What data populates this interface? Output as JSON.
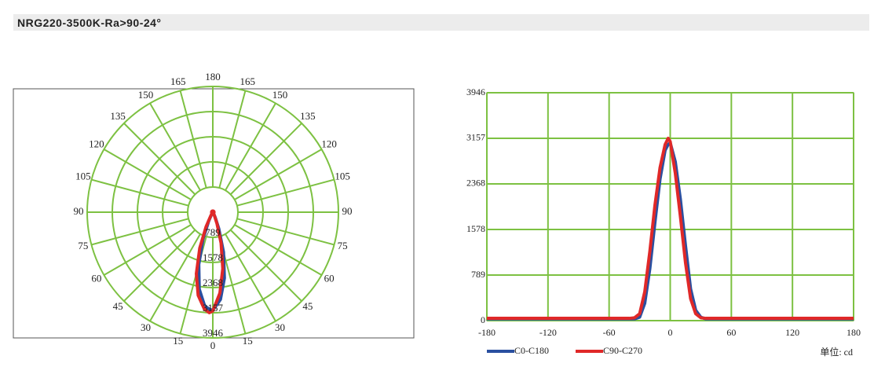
{
  "header": {
    "title": "NRG220-3500K-Ra>90-24°"
  },
  "chart_data": [
    {
      "type": "polar",
      "angle_labels": [
        0,
        15,
        30,
        45,
        60,
        75,
        90,
        105,
        120,
        135,
        150,
        165,
        180
      ],
      "rlim": [
        0,
        3946
      ],
      "rticks": [
        789,
        1578,
        2368,
        3157,
        3946
      ],
      "grid": true,
      "grid_color": "#7dc142"
    },
    {
      "type": "line",
      "x": [
        -180,
        -150,
        -120,
        -90,
        -60,
        -40,
        -35,
        -30,
        -25,
        -20,
        -15,
        -10,
        -5,
        -2,
        0,
        5,
        10,
        15,
        20,
        25,
        30,
        35,
        40,
        60,
        90,
        120,
        150,
        180
      ],
      "series": [
        {
          "name": "C0-C180",
          "color": "#2a4fa0",
          "values": [
            30,
            30,
            30,
            30,
            30,
            30,
            30,
            60,
            300,
            900,
            1700,
            2450,
            2950,
            3050,
            3080,
            2750,
            2100,
            1300,
            550,
            180,
            60,
            30,
            30,
            30,
            30,
            30,
            30,
            30
          ]
        },
        {
          "name": "C90-C270",
          "color": "#e02828",
          "values": [
            40,
            40,
            40,
            40,
            40,
            40,
            50,
            120,
            500,
            1200,
            2000,
            2650,
            3050,
            3157,
            3100,
            2550,
            1800,
            1000,
            380,
            120,
            50,
            40,
            40,
            40,
            40,
            40,
            40,
            40
          ]
        }
      ],
      "xlim": [
        -180,
        180
      ],
      "xticks": [
        -180,
        -120,
        -60,
        0,
        60,
        120,
        180
      ],
      "ylim": [
        0,
        3946
      ],
      "yticks": [
        0,
        789,
        1578,
        2368,
        3157,
        3946
      ],
      "grid": true,
      "grid_color": "#7dc142",
      "unit_label": "单位: cd"
    }
  ]
}
